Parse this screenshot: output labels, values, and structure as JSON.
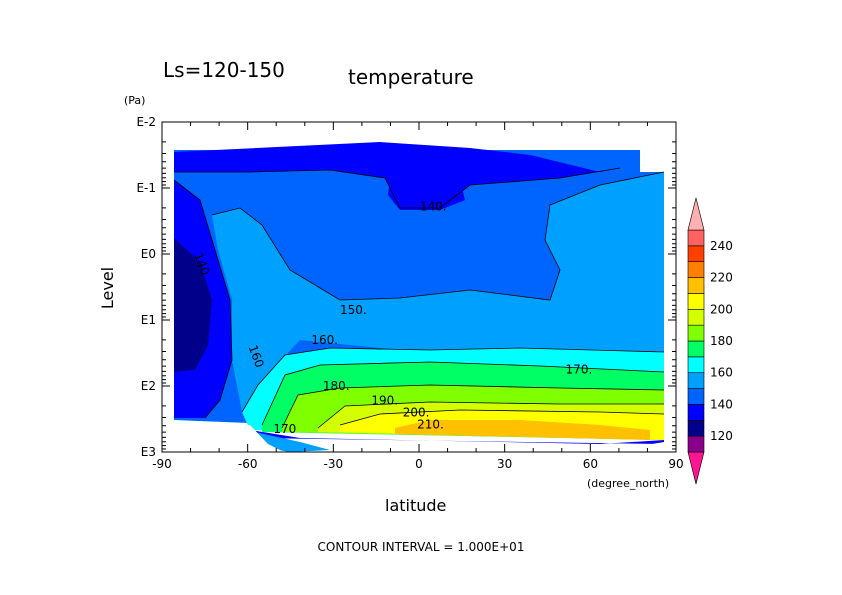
{
  "chart_data": {
    "type": "contour",
    "title_left": "Ls=120-150",
    "title_right": "temperature",
    "xlabel": "latitude",
    "xunit": "(degree_north)",
    "ylabel": "Level",
    "yunit": "(Pa)",
    "x_ticks": [
      "-90",
      "-60",
      "-30",
      "0",
      "30",
      "60",
      "90"
    ],
    "x_tick_values": [
      -90,
      -60,
      -30,
      0,
      30,
      60,
      90
    ],
    "y_ticks": [
      "E-2",
      "E-1",
      "E0",
      "E1",
      "E2",
      "E3"
    ],
    "y_tick_values": [
      -2,
      -1,
      0,
      1,
      2,
      3
    ],
    "y_scale": "log",
    "xlim": [
      -90,
      90
    ],
    "ylim_log10": [
      -2,
      3
    ],
    "contour_labels": [
      {
        "text": "140.",
        "x": 5,
        "y": -0.72
      },
      {
        "text": "140",
        "x": -76,
        "y": 0.15
      },
      {
        "text": "150.",
        "x": -23,
        "y": 0.85
      },
      {
        "text": "160.",
        "x": -33,
        "y": 1.3
      },
      {
        "text": "160",
        "x": -57,
        "y": 1.55
      },
      {
        "text": "170.",
        "x": 56,
        "y": 1.75
      },
      {
        "text": "180.",
        "x": -29,
        "y": 2.0
      },
      {
        "text": "190.",
        "x": -12,
        "y": 2.22
      },
      {
        "text": "200.",
        "x": -1,
        "y": 2.4
      },
      {
        "text": "210.",
        "x": 4,
        "y": 2.58
      },
      {
        "text": "170",
        "x": -47,
        "y": 2.65
      }
    ],
    "colorbar": {
      "ticks": [
        "120",
        "140",
        "160",
        "180",
        "200",
        "220",
        "240"
      ],
      "levels": [
        110,
        120,
        130,
        140,
        150,
        160,
        170,
        180,
        190,
        200,
        210,
        220,
        230,
        240,
        250
      ],
      "colors": [
        "#ff1493",
        "#8b008b",
        "#00008b",
        "#0000ff",
        "#0064ff",
        "#00a0ff",
        "#00ffff",
        "#00ff64",
        "#7fff00",
        "#d4ff00",
        "#ffff00",
        "#ffc000",
        "#ff8000",
        "#ff4000",
        "#ff6060",
        "#ffb0b0"
      ]
    },
    "footer": "CONTOUR INTERVAL = 1.000E+01"
  }
}
